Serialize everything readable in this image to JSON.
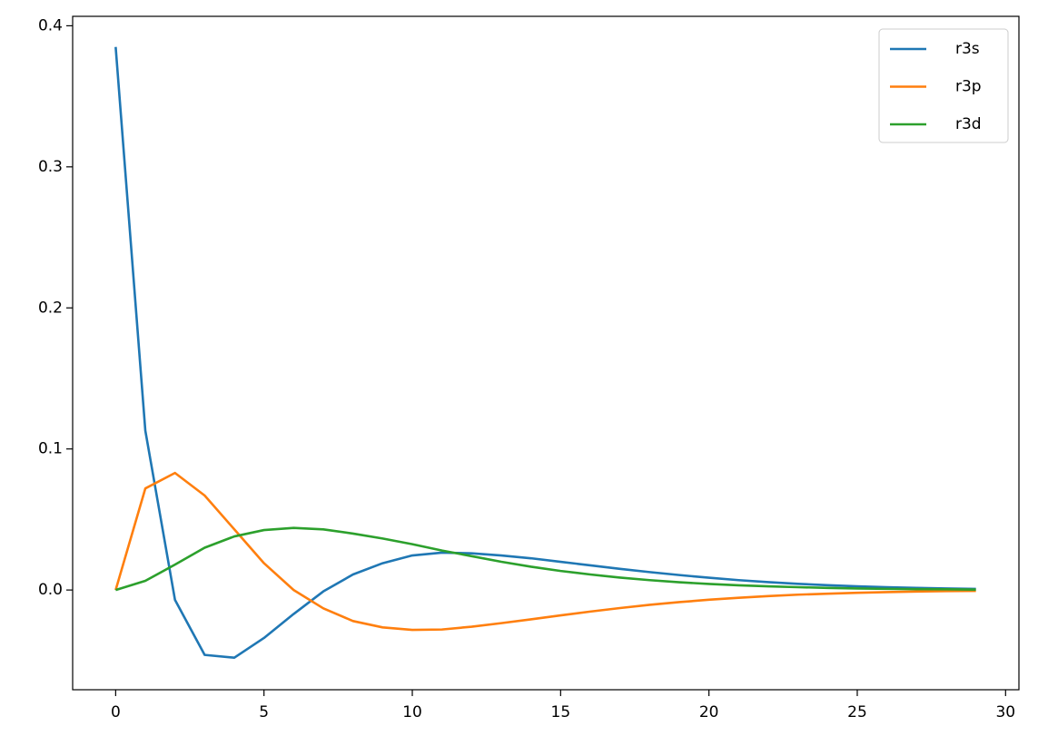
{
  "chart_data": {
    "type": "line",
    "x": [
      0,
      1,
      2,
      3,
      4,
      5,
      6,
      7,
      8,
      9,
      10,
      11,
      12,
      13,
      14,
      15,
      16,
      17,
      18,
      19,
      20,
      21,
      22,
      23,
      24,
      25,
      26,
      27,
      28,
      29
    ],
    "series": [
      {
        "name": "r3s",
        "color": "#1f77b4",
        "values": [
          0.385,
          0.113,
          -0.007,
          -0.046,
          -0.048,
          -0.034,
          -0.017,
          -0.001,
          0.011,
          0.019,
          0.0245,
          0.0265,
          0.026,
          0.0245,
          0.0225,
          0.02,
          0.0175,
          0.015,
          0.0127,
          0.0106,
          0.0087,
          0.007,
          0.0056,
          0.0044,
          0.0034,
          0.0026,
          0.002,
          0.0015,
          0.0011,
          0.0008
        ]
      },
      {
        "name": "r3p",
        "color": "#ff7f0e",
        "values": [
          0,
          0.072,
          0.083,
          0.067,
          0.043,
          0.019,
          0.0,
          -0.013,
          -0.022,
          -0.0265,
          -0.0283,
          -0.028,
          -0.026,
          -0.0235,
          -0.0208,
          -0.018,
          -0.0153,
          -0.0128,
          -0.0105,
          -0.0086,
          -0.0069,
          -0.0055,
          -0.0043,
          -0.0033,
          -0.0026,
          -0.002,
          -0.0015,
          -0.0011,
          -0.0008,
          -0.0006
        ]
      },
      {
        "name": "r3d",
        "color": "#2ca02c",
        "values": [
          0,
          0.0065,
          0.018,
          0.03,
          0.038,
          0.0425,
          0.044,
          0.043,
          0.04,
          0.0365,
          0.0325,
          0.028,
          0.024,
          0.02,
          0.0165,
          0.0135,
          0.011,
          0.0088,
          0.007,
          0.0055,
          0.0043,
          0.0033,
          0.0026,
          0.002,
          0.0015,
          0.0011,
          0.0008,
          0.0006,
          0.0005,
          0.0003
        ]
      }
    ],
    "xlim": [
      -1.45,
      30.45
    ],
    "xticks": [
      0,
      5,
      10,
      15,
      20,
      25,
      30
    ],
    "ylim": [
      -0.0707,
      0.4067
    ],
    "yticks": [
      {
        "value": 0,
        "label": "0.0"
      },
      0.1,
      0.2,
      0.3,
      0.4
    ],
    "grid": false,
    "legend": "upper right"
  }
}
